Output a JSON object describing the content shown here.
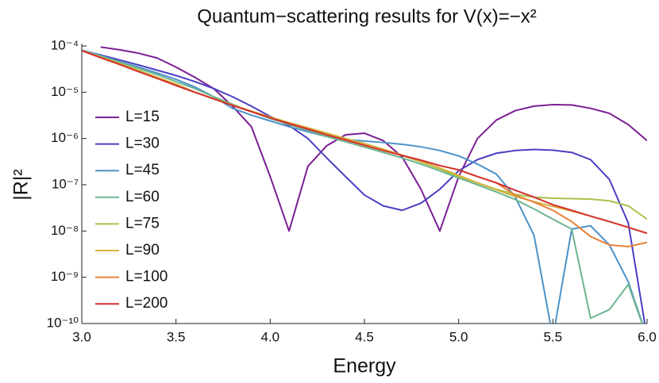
{
  "chart_data": {
    "type": "line",
    "title": "Quantum−scattering results for V(x)=−x²",
    "xlabel": "Energy",
    "ylabel": "|R|²",
    "log_y": true,
    "legend": "left",
    "x": [
      3.0,
      3.1,
      3.2,
      3.3,
      3.4,
      3.5,
      3.6,
      3.7,
      3.8,
      3.9,
      4.0,
      4.1,
      4.2,
      4.3,
      4.4,
      4.5,
      4.6,
      4.7,
      4.8,
      4.9,
      5.0,
      5.1,
      5.2,
      5.3,
      5.4,
      5.5,
      5.6,
      5.7,
      5.8,
      5.9,
      6.0
    ],
    "xlim": [
      3,
      6
    ],
    "xticks": [
      {
        "value": 3,
        "label": "3.0"
      },
      3.5,
      {
        "value": 4,
        "label": "4.0"
      },
      4.5,
      {
        "value": 5,
        "label": "5.0"
      },
      5.5,
      {
        "value": 6,
        "label": "6.0"
      }
    ],
    "ylim": [
      1e-10,
      0.0001
    ],
    "yticks": [
      {
        "value": 1e-10,
        "label": "10⁻¹⁰"
      },
      {
        "value": 1e-09,
        "label": "10⁻⁹"
      },
      {
        "value": 1e-08,
        "label": "10⁻⁸"
      },
      {
        "value": 1e-07,
        "label": "10⁻⁷"
      },
      {
        "value": 1e-06,
        "label": "10⁻⁶"
      },
      {
        "value": 1e-05,
        "label": "10⁻⁵"
      },
      {
        "value": 0.0001,
        "label": "10⁻⁴"
      }
    ],
    "series": [
      {
        "name": "L=15",
        "color": "#7b1e94",
        "values": [
          null,
          9.5e-05,
          8.3e-05,
          7e-05,
          5.5e-05,
          3.5e-05,
          2.1e-05,
          1.2e-05,
          5e-06,
          1.8e-06,
          1.5e-07,
          1e-08,
          2.5e-07,
          7e-07,
          1.2e-06,
          1.3e-06,
          9e-07,
          4e-07,
          8e-08,
          1e-08,
          1.5e-07,
          1e-06,
          2.5e-06,
          4e-06,
          5e-06,
          5.4e-06,
          5.3e-06,
          4.5e-06,
          3.5e-06,
          2e-06,
          9e-07
        ]
      },
      {
        "name": "L=30",
        "color": "#4a3fc4",
        "values": [
          8e-05,
          6.4e-05,
          5e-05,
          3.9e-05,
          3e-05,
          2.3e-05,
          1.7e-05,
          1.2e-05,
          8e-06,
          5e-06,
          3e-06,
          1.9e-06,
          1e-06,
          3.8e-07,
          1.5e-07,
          6e-08,
          3.5e-08,
          2.8e-08,
          4e-08,
          8e-08,
          2e-07,
          3.5e-07,
          4.8e-07,
          5.5e-07,
          5.8e-07,
          5.6e-07,
          5e-07,
          3.5e-07,
          1.3e-07,
          1.5e-08,
          5e-11
        ]
      },
      {
        "name": "L=45",
        "color": "#4b92c9",
        "values": [
          8.2e-05,
          6.2e-05,
          4.6e-05,
          3.5e-05,
          2.6e-05,
          1.9e-05,
          1.3e-05,
          8e-06,
          4.5e-06,
          3.2e-06,
          2.4e-06,
          1.8e-06,
          1.4e-06,
          1.1e-06,
          9.5e-07,
          8.8e-07,
          8.2e-07,
          7.5e-07,
          6.6e-07,
          5.5e-07,
          4.2e-07,
          2.8e-07,
          1.7e-07,
          5.5e-08,
          8e-09,
          5e-11,
          1.1e-08,
          1.3e-08,
          5e-09,
          8e-10,
          5e-11
        ]
      },
      {
        "name": "L=60",
        "color": "#6cb58f",
        "values": [
          8e-05,
          6e-05,
          4.5e-05,
          3.3e-05,
          2.4e-05,
          1.7e-05,
          1.2e-05,
          8e-06,
          5.5e-06,
          3.8e-06,
          2.7e-06,
          2e-06,
          1.5e-06,
          1.1e-06,
          8.5e-07,
          6.5e-07,
          5e-07,
          3.8e-07,
          2.8e-07,
          2e-07,
          1.4e-07,
          1e-07,
          7e-08,
          4.8e-08,
          3e-08,
          1.8e-08,
          1.1e-08,
          1.3e-10,
          2e-10,
          7e-10,
          5e-11
        ]
      },
      {
        "name": "L=75",
        "color": "#a8c24d",
        "values": [
          8e-05,
          5.8e-05,
          4.2e-05,
          3e-05,
          2.1e-05,
          1.5e-05,
          1e-05,
          7.3e-06,
          5.3e-06,
          3.9e-06,
          2.9e-06,
          2.2e-06,
          1.7e-06,
          1.3e-06,
          1e-06,
          7.8e-07,
          5.8e-07,
          4.3e-07,
          3.1e-07,
          2.2e-07,
          1.5e-07,
          1.1e-07,
          8e-08,
          6.2e-08,
          5.4e-08,
          5.1e-08,
          5e-08,
          4.9e-08,
          4.5e-08,
          3.5e-08,
          1.8e-08
        ]
      },
      {
        "name": "L=90",
        "color": "#d6b23a",
        "values": [
          8e-05,
          5.7e-05,
          4.1e-05,
          2.9e-05,
          2.1e-05,
          1.5e-05,
          1e-05,
          7.3e-06,
          5.3e-06,
          3.9e-06,
          2.9e-06,
          2.2e-06,
          1.7e-06,
          1.3e-06,
          1e-06,
          7.7e-07,
          5.9e-07,
          4.4e-07,
          3.2e-07,
          2.3e-07,
          1.6e-07,
          1.1e-07,
          7.8e-08,
          5.6e-08,
          4.3e-08,
          3.4e-08,
          2.7e-08,
          2.1e-08,
          1.6e-08,
          1.2e-08,
          9e-09
        ]
      },
      {
        "name": "L=100",
        "color": "#e8823a",
        "values": [
          7.9e-05,
          5.6e-05,
          4e-05,
          2.8e-05,
          2e-05,
          1.4e-05,
          1e-05,
          7.2e-06,
          5.2e-06,
          3.8e-06,
          2.8e-06,
          2.1e-06,
          1.6e-06,
          1.2e-06,
          9.3e-07,
          7.1e-07,
          5.5e-07,
          4.3e-07,
          3.4e-07,
          2.6e-07,
          2.1e-07,
          1.5e-07,
          1.1e-07,
          6e-08,
          4.2e-08,
          2.8e-08,
          1.6e-08,
          7.6e-09,
          5e-09,
          4.6e-09,
          5.7e-09
        ]
      },
      {
        "name": "L=200",
        "color": "#d3312f",
        "values": [
          7.9e-05,
          5.6e-05,
          4e-05,
          2.8e-05,
          2e-05,
          1.4e-05,
          1e-05,
          7.2e-06,
          5.2e-06,
          3.8e-06,
          2.8e-06,
          2.1e-06,
          1.6e-06,
          1.2e-06,
          9.3e-07,
          7.1e-07,
          5.5e-07,
          4.3e-07,
          3.4e-07,
          2.6e-07,
          2.1e-07,
          1.5e-07,
          1.1e-07,
          7.6e-08,
          5.4e-08,
          3.7e-08,
          2.8e-08,
          2.1e-08,
          1.6e-08,
          1.2e-08,
          8.9e-09
        ]
      }
    ]
  }
}
